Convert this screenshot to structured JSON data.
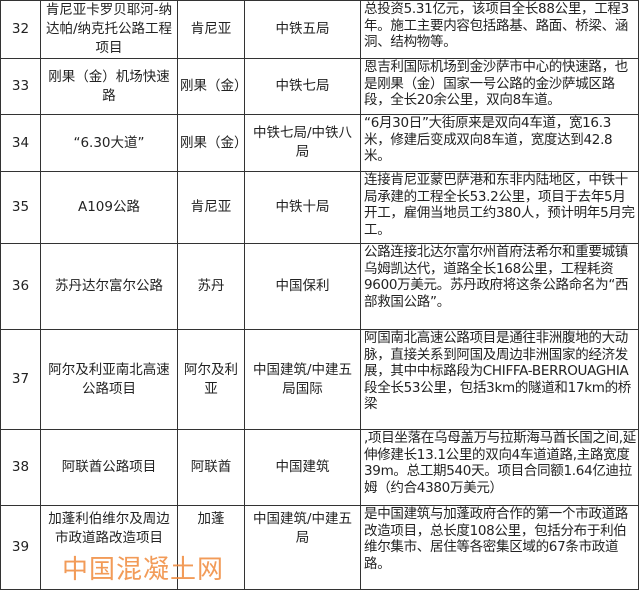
{
  "rows": [
    {
      "no": "32",
      "project": "肯尼亚卡罗贝耶河-纳达帕/纳克托公路工程项目",
      "country": "肯尼亚",
      "company": "中铁五局",
      "description": "总投资5.31亿元，该项目全长88公里，工程3年。施工主要内容包括路基、路面、桥梁、涵洞、结构物等。"
    },
    {
      "no": "33",
      "project": "刚果（金）机场快速路",
      "country": "刚果（金）",
      "company": "中铁七局",
      "description": "恩吉利国际机场到金沙萨市中心的快速路，也是刚果（金）国家一号公路的金沙萨城区路段，全长20余公里，双向8车道。"
    },
    {
      "no": "34",
      "project": "“6.30大道”",
      "country": "刚果（金）",
      "company": "中铁七局/中铁八局",
      "description": "“6月30日”大街原来是双向4车道，宽16.3米，修建后变成双向8车道，宽度达到42.8米。"
    },
    {
      "no": "35",
      "project": "A109公路",
      "country": "肯尼亚",
      "company": "中铁十局",
      "description": "连接肯尼亚蒙巴萨港和东非内陆地区，中铁十局承建的工程全长53.2公里，项目于去年5月开工，雇佣当地员工约380人，预计明年5月完工。"
    },
    {
      "no": "36",
      "project": "苏丹达尔富尔公路",
      "country": "苏丹",
      "company": "中国保利",
      "description": "公路连接北达尔富尔州首府法希尔和重要城镇乌姆凯达代，道路全长168公里，工程耗资9600万美元。苏丹政府将这条公路命名为“西部救国公路”。"
    },
    {
      "no": "37",
      "project": "阿尔及利亚南北高速公路项目",
      "country": "阿尔及利亚",
      "company": "中国建筑/中建五局国际",
      "description": "阿国南北高速公路项目是通往非洲腹地的大动脉，直接关系到阿国及周边非洲国家的经济发展，其中中标路段为CHIFFA-BERROUAGHIA段全长53公里，包括3km的隧道和17km的桥梁"
    },
    {
      "no": "38",
      "project": "阿联酋公路项目",
      "country": "阿联酋",
      "company": "中国建筑",
      "description": ",项目坐落在乌母盖万与拉斯海马酋长国之间,延伸修建长13.1公里的双向4车道道路,主路宽度39m。总工期540天。项目合同额1.64亿迪拉姆（约合4380万美元）"
    },
    {
      "no": "39",
      "project": "加蓬利伯维尔及周边市政道路改造项目",
      "country": "加蓬",
      "company": "中国建筑/中建五局",
      "description": "是中国建筑与加蓬政府合作的第一个市政道路改造项目，总长度108公里，包括分布于利伯维尔集市、居住等各密集区域的67条市政道路。"
    }
  ],
  "watermark": "中国混凝土网",
  "colors": {
    "watermark": "#f08a3c",
    "border": "#333333"
  }
}
